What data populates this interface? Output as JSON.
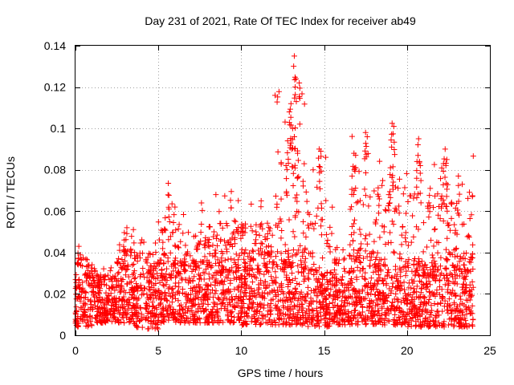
{
  "chart_data": {
    "type": "scatter",
    "title": "Day 231 of 2021, Rate Of TEC Index for receiver ab49",
    "xlabel": "GPS time / hours",
    "ylabel": "ROTI / TECUs",
    "xlim": [
      0,
      25
    ],
    "ylim": [
      0,
      0.14
    ],
    "x_ticks": [
      0,
      5,
      10,
      15,
      20,
      25
    ],
    "y_ticks": [
      0,
      0.02,
      0.04,
      0.06,
      0.08,
      0.1,
      0.12,
      0.14
    ],
    "x_tick_labels": [
      "0",
      "5",
      "10",
      "15",
      "20",
      "25"
    ],
    "y_tick_labels": [
      "0",
      "0.02",
      "0.04",
      "0.06",
      "0.08",
      "0.1",
      "0.12",
      "0.14"
    ],
    "grid": true,
    "marker": "+",
    "color": "#ff0000",
    "bands": [
      {
        "x_range": [
          0.0,
          1.0
        ],
        "base": [
          0.004,
          0.03
        ],
        "peak": 0.044
      },
      {
        "x_range": [
          1.0,
          2.5
        ],
        "base": [
          0.006,
          0.026
        ],
        "peak": 0.035
      },
      {
        "x_range": [
          2.5,
          3.5
        ],
        "base": [
          0.006,
          0.034
        ],
        "peak": 0.052
      },
      {
        "x_range": [
          3.5,
          5.0
        ],
        "base": [
          0.003,
          0.032
        ],
        "peak": 0.047
      },
      {
        "x_range": [
          5.0,
          6.5
        ],
        "base": [
          0.006,
          0.036
        ],
        "peak": 0.074
      },
      {
        "x_range": [
          6.5,
          8.0
        ],
        "base": [
          0.006,
          0.036
        ],
        "peak": 0.063
      },
      {
        "x_range": [
          8.0,
          10.0
        ],
        "base": [
          0.006,
          0.038
        ],
        "peak": 0.07
      },
      {
        "x_range": [
          10.0,
          12.0
        ],
        "base": [
          0.005,
          0.04
        ],
        "peak": 0.066
      },
      {
        "x_range": [
          12.0,
          14.0
        ],
        "base": [
          0.005,
          0.042
        ],
        "peak": 0.135
      },
      {
        "x_range": [
          14.0,
          15.5
        ],
        "base": [
          0.004,
          0.032
        ],
        "peak": 0.09
      },
      {
        "x_range": [
          15.5,
          16.5
        ],
        "base": [
          0.005,
          0.028
        ],
        "peak": 0.045
      },
      {
        "x_range": [
          16.5,
          18.0
        ],
        "base": [
          0.005,
          0.04
        ],
        "peak": 0.098
      },
      {
        "x_range": [
          18.0,
          20.0
        ],
        "base": [
          0.005,
          0.036
        ],
        "peak": 0.103
      },
      {
        "x_range": [
          20.0,
          22.0
        ],
        "base": [
          0.004,
          0.038
        ],
        "peak": 0.095
      },
      {
        "x_range": [
          22.0,
          24.0
        ],
        "base": [
          0.004,
          0.04
        ],
        "peak": 0.09
      }
    ],
    "outliers": [
      [
        5.6,
        0.0735
      ],
      [
        9.4,
        0.0695
      ],
      [
        12.9,
        0.108
      ],
      [
        13.0,
        0.112
      ],
      [
        13.2,
        0.135
      ],
      [
        13.3,
        0.124
      ],
      [
        13.5,
        0.122
      ],
      [
        13.1,
        0.1
      ],
      [
        13.2,
        0.096
      ],
      [
        12.8,
        0.094
      ],
      [
        13.4,
        0.088
      ],
      [
        12.7,
        0.082
      ],
      [
        14.7,
        0.09
      ],
      [
        14.8,
        0.089
      ],
      [
        16.8,
        0.088
      ],
      [
        16.9,
        0.087
      ],
      [
        17.5,
        0.098
      ],
      [
        17.6,
        0.096
      ],
      [
        19.1,
        0.1025
      ],
      [
        19.2,
        0.101
      ],
      [
        19.0,
        0.081
      ],
      [
        19.15,
        0.0815
      ],
      [
        20.7,
        0.095
      ],
      [
        20.6,
        0.084
      ],
      [
        20.8,
        0.082
      ],
      [
        22.3,
        0.09
      ],
      [
        22.4,
        0.085
      ],
      [
        22.2,
        0.083
      ],
      [
        23.1,
        0.077
      ],
      [
        21.4,
        0.071
      ],
      [
        18.9,
        0.068
      ],
      [
        11.2,
        0.065
      ],
      [
        7.6,
        0.064
      ],
      [
        6.0,
        0.062
      ],
      [
        3.1,
        0.052
      ],
      [
        0.2,
        0.043
      ]
    ]
  }
}
